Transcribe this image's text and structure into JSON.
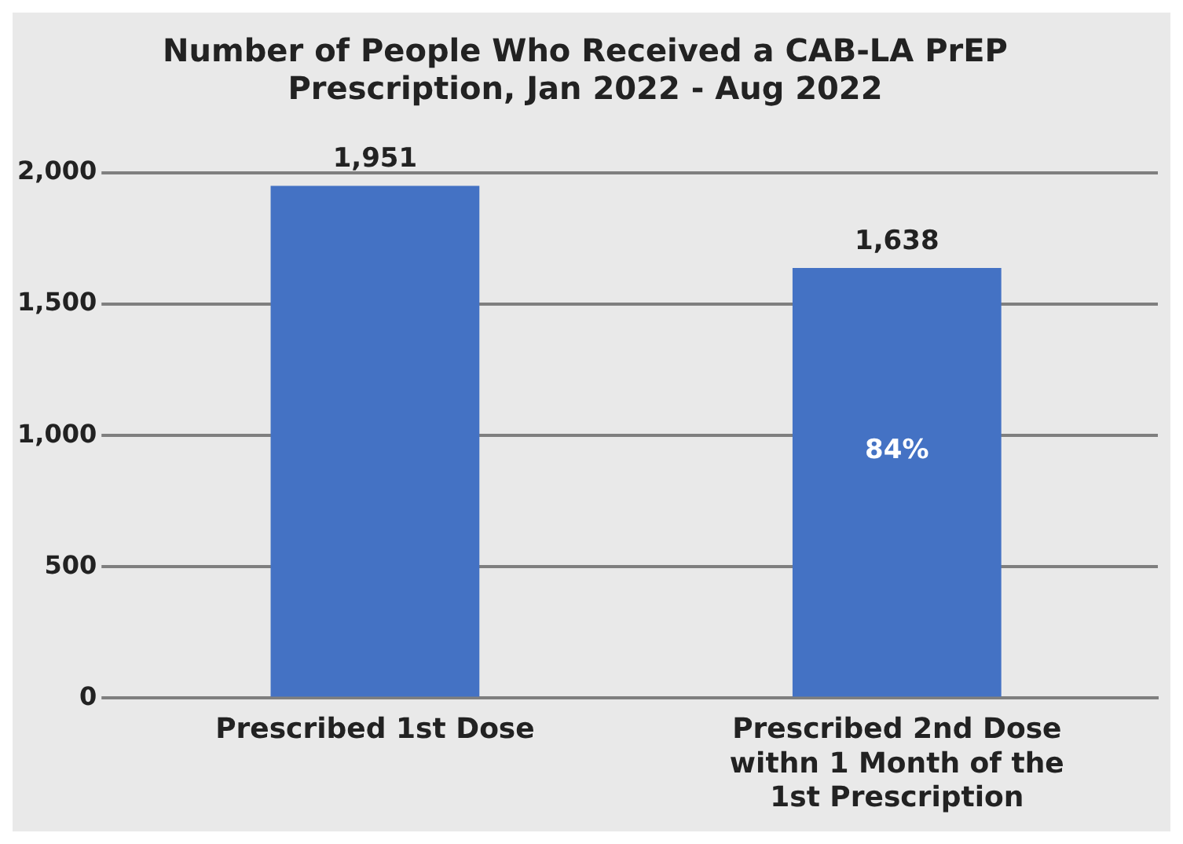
{
  "chart_data": {
    "type": "bar",
    "title": "Number of People Who Received a CAB-LA PrEP Prescription, Jan 2022 - Aug 2022",
    "categories": [
      "Prescribed 1st Dose",
      "Prescribed 2nd Dose withn 1 Month of the 1st Prescription"
    ],
    "values": [
      1951,
      1638
    ],
    "value_labels": [
      "1,951",
      "1,638"
    ],
    "color": "#4472c4",
    "ylim": [
      0,
      2000
    ],
    "yticks": [
      0,
      500,
      {
        "value": 1000,
        "label": "1,000"
      },
      {
        "value": 1500,
        "label": "1,500"
      },
      {
        "value": 2000,
        "label": "2,000"
      }
    ],
    "grid": "y",
    "annotations": [
      "84%"
    ]
  }
}
